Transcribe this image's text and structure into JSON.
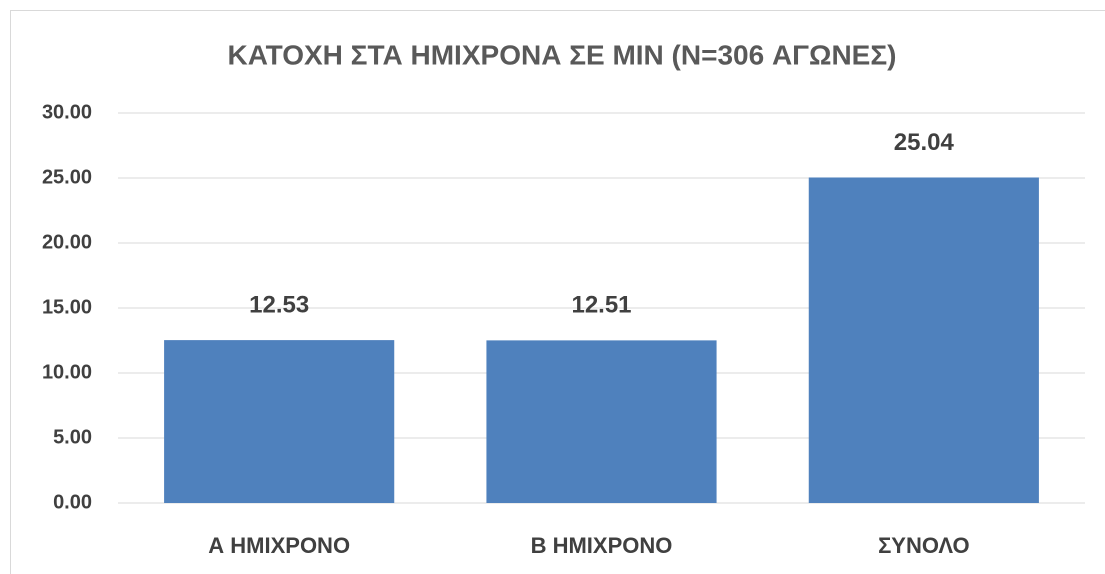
{
  "chart_data": {
    "type": "bar",
    "title": "ΚΑΤΟΧΗ ΣΤΑ ΗΜΙΧΡΟΝΑ ΣΕ MIN (N=306 ΑΓΩΝΕΣ)",
    "categories": [
      "Α ΗΜΙΧΡΟΝΟ",
      "Β ΗΜΙΧΡΟΝΟ",
      "ΣΥΝΟΛΟ"
    ],
    "values": [
      12.53,
      12.51,
      25.04
    ],
    "color": "#4f81bd",
    "ylim": [
      0,
      30
    ],
    "yticks": [
      {
        "value": 0,
        "label": "0.00"
      },
      {
        "value": 5,
        "label": "5.00"
      },
      {
        "value": 10,
        "label": "10.00"
      },
      {
        "value": 15,
        "label": "15.00"
      },
      {
        "value": 20,
        "label": "20.00"
      },
      {
        "value": 25,
        "label": "25.00"
      },
      {
        "value": 30,
        "label": "30.00"
      }
    ],
    "grid": true
  }
}
